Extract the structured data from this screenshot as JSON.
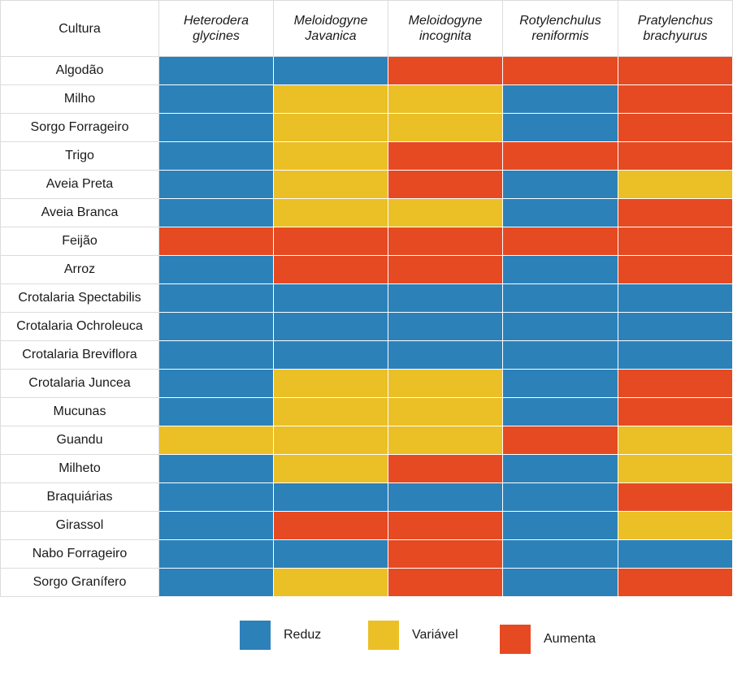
{
  "chart_data": {
    "type": "heatmap",
    "corner_header": "Cultura",
    "columns": [
      "Heterodera glycines",
      "Meloidogyne Javanica",
      "Meloidogyne incognita",
      "Rotylenchulus reniformis",
      "Pratylenchus brachyurus"
    ],
    "colors": {
      "R": "#2c81b9",
      "V": "#ebbf26",
      "A": "#e64a22"
    },
    "legend": [
      {
        "key": "R",
        "label": "Reduz"
      },
      {
        "key": "V",
        "label": "Variável"
      },
      {
        "key": "A",
        "label": "Aumenta"
      }
    ],
    "rows": [
      {
        "crop": "Algodão",
        "values": [
          "R",
          "R",
          "A",
          "A",
          "A"
        ]
      },
      {
        "crop": "Milho",
        "values": [
          "R",
          "V",
          "V",
          "R",
          "A"
        ]
      },
      {
        "crop": "Sorgo Forrageiro",
        "values": [
          "R",
          "V",
          "V",
          "R",
          "A"
        ]
      },
      {
        "crop": "Trigo",
        "values": [
          "R",
          "V",
          "A",
          "A",
          "A"
        ]
      },
      {
        "crop": "Aveia Preta",
        "values": [
          "R",
          "V",
          "A",
          "R",
          "V"
        ]
      },
      {
        "crop": "Aveia Branca",
        "values": [
          "R",
          "V",
          "V",
          "R",
          "A"
        ]
      },
      {
        "crop": "Feijão",
        "values": [
          "A",
          "A",
          "A",
          "A",
          "A"
        ]
      },
      {
        "crop": "Arroz",
        "values": [
          "R",
          "A",
          "A",
          "R",
          "A"
        ]
      },
      {
        "crop": "Crotalaria Spectabilis",
        "values": [
          "R",
          "R",
          "R",
          "R",
          "R"
        ]
      },
      {
        "crop": "Crotalaria Ochroleuca",
        "values": [
          "R",
          "R",
          "R",
          "R",
          "R"
        ]
      },
      {
        "crop": "Crotalaria Breviflora",
        "values": [
          "R",
          "R",
          "R",
          "R",
          "R"
        ]
      },
      {
        "crop": "Crotalaria Juncea",
        "values": [
          "R",
          "V",
          "V",
          "R",
          "A"
        ]
      },
      {
        "crop": "Mucunas",
        "values": [
          "R",
          "V",
          "V",
          "R",
          "A"
        ]
      },
      {
        "crop": "Guandu",
        "values": [
          "V",
          "V",
          "V",
          "A",
          "V"
        ]
      },
      {
        "crop": "Milheto",
        "values": [
          "R",
          "V",
          "A",
          "R",
          "V"
        ]
      },
      {
        "crop": "Braquiárias",
        "values": [
          "R",
          "R",
          "R",
          "R",
          "A"
        ]
      },
      {
        "crop": "Girassol",
        "values": [
          "R",
          "A",
          "A",
          "R",
          "V"
        ]
      },
      {
        "crop": "Nabo Forrageiro",
        "values": [
          "R",
          "R",
          "A",
          "R",
          "R"
        ]
      },
      {
        "crop": "Sorgo Granífero",
        "values": [
          "R",
          "V",
          "A",
          "R",
          "A"
        ]
      }
    ]
  }
}
